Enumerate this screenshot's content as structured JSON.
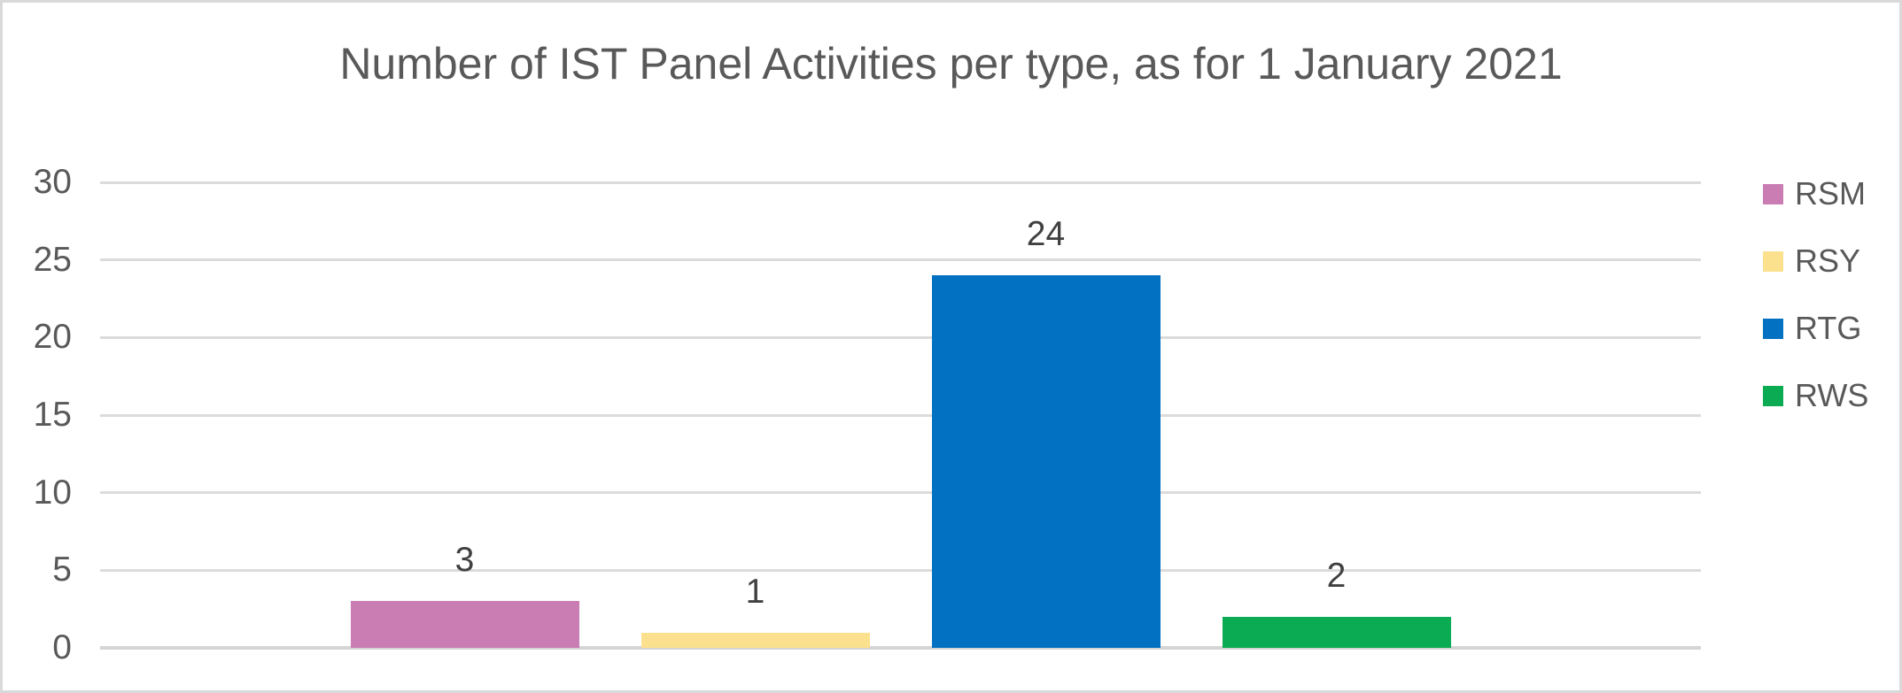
{
  "chart_data": {
    "type": "bar",
    "title": "Number of IST Panel Activities per type, as for 1 January 2021",
    "categories": [
      ""
    ],
    "series": [
      {
        "name": "RSM",
        "values": [
          3
        ],
        "color": "#C97DB2"
      },
      {
        "name": "RSY",
        "values": [
          1
        ],
        "color": "#FBE08E"
      },
      {
        "name": "RTG",
        "values": [
          24
        ],
        "color": "#0271C2"
      },
      {
        "name": "RWS",
        "values": [
          2
        ],
        "color": "#0AAB52"
      }
    ],
    "xlabel": "",
    "ylabel": "",
    "ylim": [
      0,
      30
    ],
    "yticks": [
      0,
      5,
      10,
      15,
      20,
      25,
      30
    ],
    "grid": true,
    "data_labels": true,
    "legend_position": "right",
    "legend_entries": [
      "RSM",
      "RSY",
      "RTG",
      "RWS"
    ],
    "text_color": "#595959",
    "data_label_color": "#404040",
    "gridline_color": "#DBDBDB"
  }
}
